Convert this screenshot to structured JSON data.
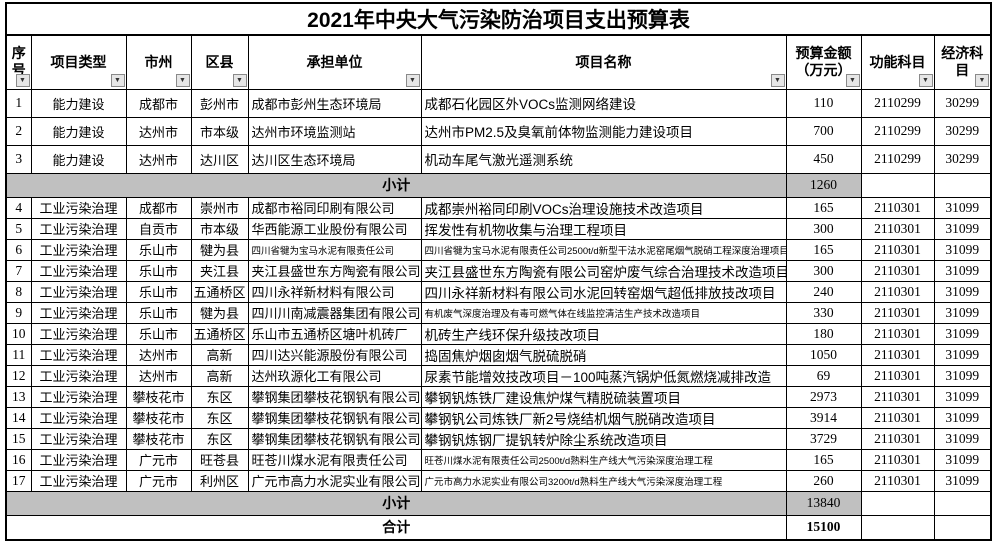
{
  "title": "2021年中央大气污染防治项目支出预算表",
  "icons": {
    "filter_arrow": "▼"
  },
  "colors": {
    "subtotal_bg": "#c0c0c0",
    "border": "#000000"
  },
  "table": {
    "columns": [
      {
        "key": "seq",
        "label": "序号"
      },
      {
        "key": "type",
        "label": "项目类型"
      },
      {
        "key": "city",
        "label": "市州"
      },
      {
        "key": "district",
        "label": "区县"
      },
      {
        "key": "unit",
        "label": "承担单位"
      },
      {
        "key": "project",
        "label": "项目名称"
      },
      {
        "key": "budget",
        "label": "预算金额（万元）"
      },
      {
        "key": "func",
        "label": "功能科目"
      },
      {
        "key": "econ",
        "label": "经济科目"
      }
    ],
    "rows": [
      {
        "kind": "data",
        "seq": "1",
        "type": "能力建设",
        "city": "成都市",
        "district": "彭州市",
        "unit": "成都市彭州生态环境局",
        "project": "成都石化园区外VOCs监测网络建设",
        "budget": "110",
        "func": "2110299",
        "econ": "30299"
      },
      {
        "kind": "data",
        "seq": "2",
        "type": "能力建设",
        "city": "达州市",
        "district": "市本级",
        "unit": "达州市环境监测站",
        "project": "达州市PM2.5及臭氧前体物监测能力建设项目",
        "budget": "700",
        "func": "2110299",
        "econ": "30299"
      },
      {
        "kind": "data",
        "seq": "3",
        "type": "能力建设",
        "city": "达州市",
        "district": "达川区",
        "unit": "达川区生态环境局",
        "project": "机动车尾气激光遥测系统",
        "budget": "450",
        "func": "2110299",
        "econ": "30299"
      },
      {
        "kind": "subtotal",
        "label": "小计",
        "budget": "1260"
      },
      {
        "kind": "data",
        "seq": "4",
        "type": "工业污染治理",
        "city": "成都市",
        "district": "崇州市",
        "unit": "成都市裕同印刷有限公司",
        "project": "成都崇州裕同印刷VOCs治理设施技术改造项目",
        "budget": "165",
        "func": "2110301",
        "econ": "31099"
      },
      {
        "kind": "data",
        "seq": "5",
        "type": "工业污染治理",
        "city": "自贡市",
        "district": "市本级",
        "unit": "华西能源工业股份有限公司",
        "project": "挥发性有机物收集与治理工程项目",
        "budget": "300",
        "func": "2110301",
        "econ": "31099"
      },
      {
        "kind": "data",
        "seq": "6",
        "type": "工业污染治理",
        "city": "乐山市",
        "district": "犍为县",
        "unit": "四川省犍为宝马水泥有限责任公司",
        "project": "四川省犍为宝马水泥有限责任公司2500t/d新型干法水泥窑尾烟气脱硝工程深度治理项目",
        "budget": "165",
        "func": "2110301",
        "econ": "31099"
      },
      {
        "kind": "data",
        "seq": "7",
        "type": "工业污染治理",
        "city": "乐山市",
        "district": "夹江县",
        "unit": "夹江县盛世东方陶瓷有限公司",
        "project": "夹江县盛世东方陶瓷有限公司窑炉废气综合治理技术改造项目",
        "budget": "300",
        "func": "2110301",
        "econ": "31099"
      },
      {
        "kind": "data",
        "seq": "8",
        "type": "工业污染治理",
        "city": "乐山市",
        "district": "五通桥区",
        "unit": "四川永祥新材料有限公司",
        "project": "四川永祥新材料有限公司水泥回转窑烟气超低排放技改项目",
        "budget": "240",
        "func": "2110301",
        "econ": "31099"
      },
      {
        "kind": "data",
        "seq": "9",
        "type": "工业污染治理",
        "city": "乐山市",
        "district": "犍为县",
        "unit": "四川川南减震器集团有限公司",
        "project": "有机废气深度治理及有毒可燃气体在线监控清洁生产技术改造项目",
        "budget": "330",
        "func": "2110301",
        "econ": "31099"
      },
      {
        "kind": "data",
        "seq": "10",
        "type": "工业污染治理",
        "city": "乐山市",
        "district": "五通桥区",
        "unit": "乐山市五通桥区塘叶机砖厂",
        "project": "机砖生产线环保升级技改项目",
        "budget": "180",
        "func": "2110301",
        "econ": "31099"
      },
      {
        "kind": "data",
        "seq": "11",
        "type": "工业污染治理",
        "city": "达州市",
        "district": "高新",
        "unit": "四川达兴能源股份有限公司",
        "project": "捣固焦炉烟囱烟气脱硫脱硝",
        "budget": "1050",
        "func": "2110301",
        "econ": "31099"
      },
      {
        "kind": "data",
        "seq": "12",
        "type": "工业污染治理",
        "city": "达州市",
        "district": "高新",
        "unit": "达州玖源化工有限公司",
        "project": "尿素节能增效技改项目－100吨蒸汽锅炉低氮燃烧减排改造",
        "budget": "69",
        "func": "2110301",
        "econ": "31099"
      },
      {
        "kind": "data",
        "seq": "13",
        "type": "工业污染治理",
        "city": "攀枝花市",
        "district": "东区",
        "unit": "攀钢集团攀枝花钢钒有限公司",
        "project": "攀钢钒炼铁厂建设焦炉煤气精脱硫装置项目",
        "budget": "2973",
        "func": "2110301",
        "econ": "31099"
      },
      {
        "kind": "data",
        "seq": "14",
        "type": "工业污染治理",
        "city": "攀枝花市",
        "district": "东区",
        "unit": "攀钢集团攀枝花钢钒有限公司",
        "project": "攀钢钒公司炼铁厂新2号烧结机烟气脱硝改造项目",
        "budget": "3914",
        "func": "2110301",
        "econ": "31099"
      },
      {
        "kind": "data",
        "seq": "15",
        "type": "工业污染治理",
        "city": "攀枝花市",
        "district": "东区",
        "unit": "攀钢集团攀枝花钢钒有限公司",
        "project": "攀钢钒炼钢厂提钒转炉除尘系统改造项目",
        "budget": "3729",
        "func": "2110301",
        "econ": "31099"
      },
      {
        "kind": "data",
        "seq": "16",
        "type": "工业污染治理",
        "city": "广元市",
        "district": "旺苍县",
        "unit": "旺苍川煤水泥有限责任公司",
        "project": "旺苍川煤水泥有限责任公司2500t/d熟料生产线大气污染深度治理工程",
        "budget": "165",
        "func": "2110301",
        "econ": "31099"
      },
      {
        "kind": "data",
        "seq": "17",
        "type": "工业污染治理",
        "city": "广元市",
        "district": "利州区",
        "unit": "广元市高力水泥实业有限公司",
        "project": "广元市高力水泥实业有限公司3200t/d熟料生产线大气污染深度治理工程",
        "budget": "260",
        "func": "2110301",
        "econ": "31099"
      },
      {
        "kind": "subtotal",
        "label": "小计",
        "budget": "13840"
      },
      {
        "kind": "total",
        "label": "合计",
        "budget": "15100"
      }
    ]
  }
}
